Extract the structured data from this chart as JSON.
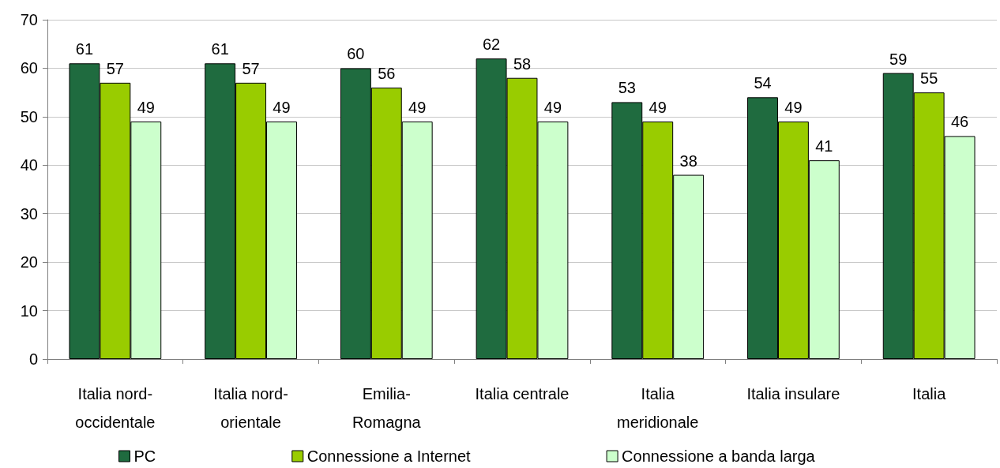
{
  "chart_data": {
    "type": "bar",
    "categories": [
      "Italia nord-occidentale",
      "Italia nord-orientale",
      "Emilia-Romagna",
      "Italia centrale",
      "Italia meridionale",
      "Italia insulare",
      "Italia"
    ],
    "series": [
      {
        "name": "PC",
        "color": "#1f6b3f",
        "values": [
          61,
          61,
          60,
          62,
          53,
          54,
          59
        ]
      },
      {
        "name": "Connessione a Internet",
        "color": "#99cc00",
        "values": [
          57,
          57,
          56,
          58,
          49,
          49,
          55
        ]
      },
      {
        "name": "Connessione a banda larga",
        "color": "#ccffcc",
        "values": [
          49,
          49,
          49,
          49,
          38,
          41,
          46
        ]
      }
    ],
    "ylim": [
      0,
      70
    ],
    "yticks": [
      0,
      10,
      20,
      30,
      40,
      50,
      60,
      70
    ],
    "grid": "y",
    "legend": "bottom",
    "data_labels": true
  }
}
